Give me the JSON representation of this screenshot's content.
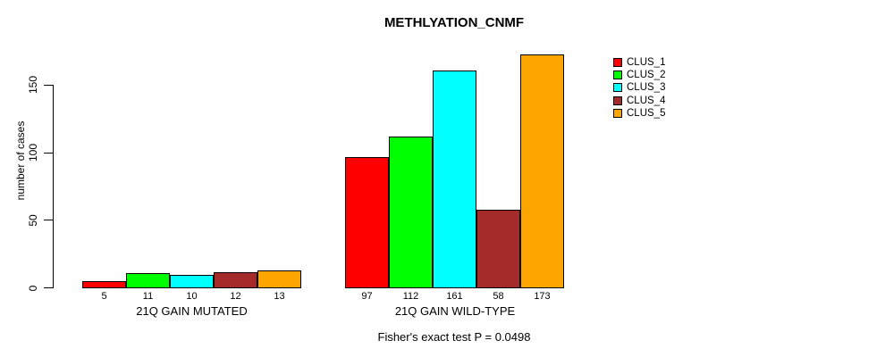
{
  "chart_data": {
    "type": "bar",
    "title": "METHLYATION_CNMF",
    "ylabel": "number of cases",
    "xlabel": "",
    "footer": "Fisher's exact test P = 0.0498",
    "grid": false,
    "legend_position": "right-inside",
    "ylim": [
      0,
      178
    ],
    "yticks": [
      0,
      50,
      100,
      150
    ],
    "categories": [
      "21Q GAIN MUTATED",
      "21Q GAIN WILD-TYPE"
    ],
    "series": [
      {
        "name": "CLUS_1",
        "color": "#ff0000",
        "values": [
          5,
          97
        ]
      },
      {
        "name": "CLUS_2",
        "color": "#00ff00",
        "values": [
          11,
          112
        ]
      },
      {
        "name": "CLUS_3",
        "color": "#00ffff",
        "values": [
          10,
          161
        ]
      },
      {
        "name": "CLUS_4",
        "color": "#a52a2a",
        "values": [
          12,
          58
        ]
      },
      {
        "name": "CLUS_5",
        "color": "#ffa500",
        "values": [
          13,
          173
        ]
      }
    ],
    "bar_value_labels": {
      "21Q GAIN MUTATED": [
        5,
        11,
        10,
        12,
        13
      ],
      "21Q GAIN WILD-TYPE": [
        97,
        112,
        161,
        58,
        173
      ]
    }
  }
}
